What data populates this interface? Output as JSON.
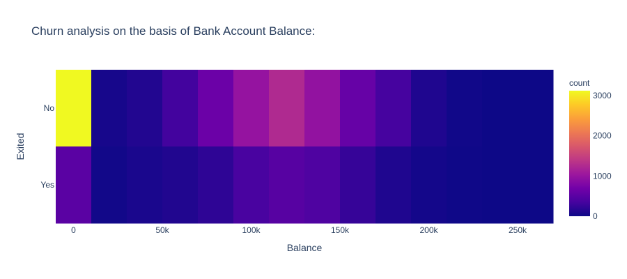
{
  "chart_data": {
    "type": "heatmap",
    "title": "Churn analysis on the basis of Bank Account Balance:",
    "xlabel": "Balance",
    "ylabel": "Exited",
    "x_bin_start": -10000,
    "x_bin_size": 20000,
    "xlim": [
      -10000,
      270000
    ],
    "x_ticks": [
      {
        "value": 0,
        "label": "0"
      },
      {
        "value": 50000,
        "label": "50k"
      },
      {
        "value": 100000,
        "label": "100k"
      },
      {
        "value": 150000,
        "label": "150k"
      },
      {
        "value": 200000,
        "label": "200k"
      },
      {
        "value": 250000,
        "label": "250k"
      }
    ],
    "y_categories": [
      "No",
      "Yes"
    ],
    "series": [
      {
        "category": "No",
        "values": [
          3117,
          60,
          130,
          330,
          640,
          980,
          1240,
          960,
          600,
          350,
          110,
          25,
          3,
          0
        ]
      },
      {
        "category": "Yes",
        "values": [
          500,
          30,
          80,
          120,
          200,
          370,
          480,
          420,
          250,
          110,
          40,
          10,
          2,
          1
        ]
      }
    ],
    "colorbar": {
      "title": "count",
      "min": 0,
      "max": 3117,
      "ticks": [
        0,
        1000,
        2000,
        3000
      ]
    },
    "colorscale": [
      "#0d0887",
      "#46039f",
      "#7201a8",
      "#9c179e",
      "#bd3786",
      "#d8576b",
      "#ed7953",
      "#fb9f3a",
      "#fdca26",
      "#f0f921"
    ]
  }
}
